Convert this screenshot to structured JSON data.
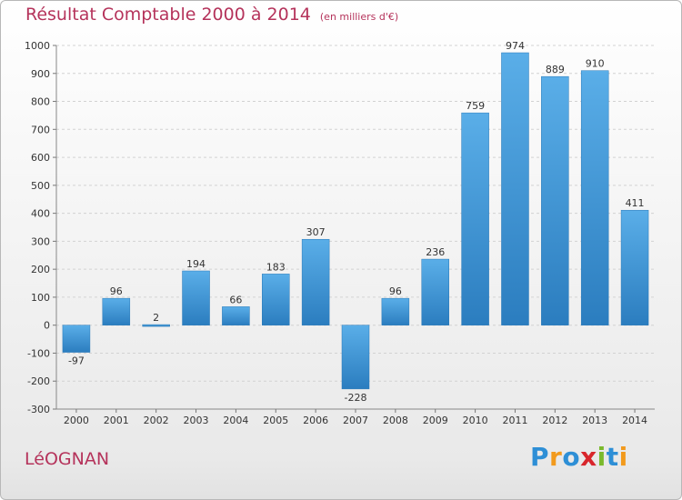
{
  "title": "Résultat Comptable 2000 à 2014",
  "subtitle": "(en milliers d'€)",
  "commune": "LéOGNAN",
  "brand": {
    "letters": [
      "P",
      "r",
      "o",
      "x",
      "i",
      "t",
      "i"
    ],
    "colors": [
      "#2e8fd6",
      "#f29a1d",
      "#2e8fd6",
      "#d8262c",
      "#7ab92c",
      "#2e8fd6",
      "#f29a1d"
    ]
  },
  "colors": {
    "bar_top": "#5aaee8",
    "bar_bottom": "#2b7dbf",
    "text": "#b5335b"
  },
  "chart_data": {
    "type": "bar",
    "categories": [
      "2000",
      "2001",
      "2002",
      "2003",
      "2004",
      "2005",
      "2006",
      "2007",
      "2008",
      "2009",
      "2010",
      "2011",
      "2012",
      "2013",
      "2014"
    ],
    "values": [
      -97,
      96,
      2,
      194,
      66,
      183,
      307,
      -228,
      96,
      236,
      759,
      974,
      889,
      910,
      411
    ],
    "data_labels": [
      "-97",
      "96",
      "2",
      "194",
      "66",
      "183",
      "307",
      "-228",
      "96",
      "236",
      "759",
      "974",
      "889",
      "910",
      "411"
    ],
    "ylim": [
      -300,
      1000
    ],
    "yticks": [
      -300,
      -200,
      -100,
      0,
      100,
      200,
      300,
      400,
      500,
      600,
      700,
      800,
      900,
      1000
    ],
    "ytick_labels": [
      "-300",
      "-200",
      "-100",
      "0",
      "100",
      "200",
      "300",
      "400",
      "500",
      "600",
      "700",
      "800",
      "900",
      "1000"
    ],
    "grid": "horizontal",
    "legend": "none"
  }
}
